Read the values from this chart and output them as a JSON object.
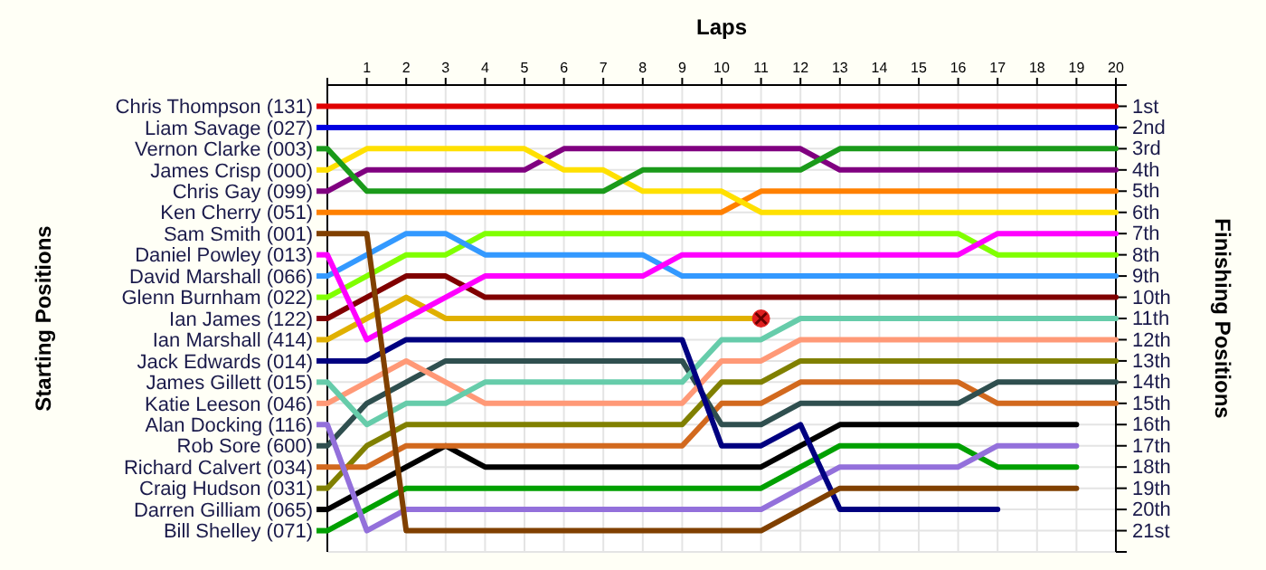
{
  "chart_data": {
    "type": "line",
    "xlabel": "Laps",
    "ylabel": "Finishing Positions",
    "annotations": [
      "Starting Positions"
    ],
    "grid": true,
    "legend": "left",
    "x": [
      0,
      1,
      2,
      3,
      4,
      5,
      6,
      7,
      8,
      9,
      10,
      11,
      12,
      13,
      14,
      15,
      16,
      17,
      18,
      19,
      20
    ],
    "xlim": [
      0,
      20
    ],
    "xticks": [
      {
        "value": 0,
        "label": null
      },
      1,
      2,
      3,
      4,
      5,
      6,
      7,
      8,
      9,
      10,
      11,
      12,
      13,
      14,
      15,
      16,
      17,
      18,
      19,
      20
    ],
    "ylim": [
      22,
      0
    ],
    "yticks": [
      {
        "value": 0,
        "label": null
      },
      {
        "value": 1,
        "label": "1st"
      },
      {
        "value": 2,
        "label": "2nd"
      },
      {
        "value": 3,
        "label": "3rd"
      },
      {
        "value": 4,
        "label": "4th"
      },
      {
        "value": 5,
        "label": "5th"
      },
      {
        "value": 6,
        "label": "6th"
      },
      {
        "value": 7,
        "label": "7th"
      },
      {
        "value": 8,
        "label": "8th"
      },
      {
        "value": 9,
        "label": "9th"
      },
      {
        "value": 10,
        "label": "10th"
      },
      {
        "value": 11,
        "label": "11th"
      },
      {
        "value": 12,
        "label": "12th"
      },
      {
        "value": 13,
        "label": "13th"
      },
      {
        "value": 14,
        "label": "14th"
      },
      {
        "value": 15,
        "label": "15th"
      },
      {
        "value": 16,
        "label": "16th"
      },
      {
        "value": 17,
        "label": "17th"
      },
      {
        "value": 18,
        "label": "18th"
      },
      {
        "value": 19,
        "label": "19th"
      },
      {
        "value": 20,
        "label": "20th"
      },
      {
        "value": 21,
        "label": "21st"
      },
      {
        "value": 22,
        "label": null
      }
    ],
    "series": [
      {
        "name": "Chris Thompson (131)",
        "color": "#e00000",
        "values": [
          1,
          1,
          1,
          1,
          1,
          1,
          1,
          1,
          1,
          1,
          1,
          1,
          1,
          1,
          1,
          1,
          1,
          1,
          1,
          1,
          1
        ]
      },
      {
        "name": "Liam Savage (027)",
        "color": "#0000e0",
        "values": [
          2,
          2,
          2,
          2,
          2,
          2,
          2,
          2,
          2,
          2,
          2,
          2,
          2,
          2,
          2,
          2,
          2,
          2,
          2,
          2,
          2
        ]
      },
      {
        "name": "Vernon Clarke (003)",
        "color": "#1a9a1a",
        "values": [
          3,
          5,
          5,
          5,
          5,
          5,
          5,
          5,
          4,
          4,
          4,
          4,
          4,
          3,
          3,
          3,
          3,
          3,
          3,
          3,
          3
        ]
      },
      {
        "name": "James Crisp (000)",
        "color": "#ffe000",
        "values": [
          4,
          3,
          3,
          3,
          3,
          3,
          4,
          4,
          5,
          5,
          5,
          6,
          6,
          6,
          6,
          6,
          6,
          6,
          6,
          6,
          6
        ]
      },
      {
        "name": "Chris Gay (099)",
        "color": "#800080",
        "values": [
          5,
          4,
          4,
          4,
          4,
          4,
          3,
          3,
          3,
          3,
          3,
          3,
          3,
          4,
          4,
          4,
          4,
          4,
          4,
          4,
          4
        ]
      },
      {
        "name": "Ken Cherry (051)",
        "color": "#ff8000",
        "values": [
          6,
          6,
          6,
          6,
          6,
          6,
          6,
          6,
          6,
          6,
          6,
          5,
          5,
          5,
          5,
          5,
          5,
          5,
          5,
          5,
          5
        ]
      },
      {
        "name": "Sam Smith (001)",
        "color": "#804000",
        "values": [
          7,
          7,
          21,
          21,
          21,
          21,
          21,
          21,
          21,
          21,
          21,
          21,
          20,
          19,
          19,
          19,
          19,
          19,
          19,
          19,
          null
        ]
      },
      {
        "name": "Daniel Powley (013)",
        "color": "#ff00ff",
        "values": [
          8,
          12,
          11,
          10,
          9,
          9,
          9,
          9,
          9,
          8,
          8,
          8,
          8,
          8,
          8,
          8,
          8,
          7,
          7,
          7,
          7
        ]
      },
      {
        "name": "David Marshall (066)",
        "color": "#3399ff",
        "values": [
          9,
          8,
          7,
          7,
          8,
          8,
          8,
          8,
          8,
          9,
          9,
          9,
          9,
          9,
          9,
          9,
          9,
          9,
          9,
          9,
          9
        ]
      },
      {
        "name": "Glenn Burnham (022)",
        "color": "#80ff00",
        "values": [
          10,
          9,
          8,
          8,
          7,
          7,
          7,
          7,
          7,
          7,
          7,
          7,
          7,
          7,
          7,
          7,
          7,
          8,
          8,
          8,
          8
        ]
      },
      {
        "name": "Ian James (122)",
        "color": "#800000",
        "values": [
          11,
          10,
          9,
          9,
          10,
          10,
          10,
          10,
          10,
          10,
          10,
          10,
          10,
          10,
          10,
          10,
          10,
          10,
          10,
          10,
          10
        ]
      },
      {
        "name": "Ian Marshall (414)",
        "color": "#e0b000",
        "values": [
          12,
          11,
          10,
          11,
          11,
          11,
          11,
          11,
          11,
          11,
          11,
          11,
          null,
          null,
          null,
          null,
          null,
          null,
          null,
          null,
          null
        ]
      },
      {
        "name": "Jack Edwards (014)",
        "color": "#000080",
        "values": [
          13,
          13,
          12,
          12,
          12,
          12,
          12,
          12,
          12,
          12,
          17,
          17,
          16,
          20,
          20,
          20,
          20,
          20,
          null,
          null,
          null
        ]
      },
      {
        "name": "James Gillett (015)",
        "color": "#66ccaa",
        "values": [
          14,
          16,
          15,
          15,
          14,
          14,
          14,
          14,
          14,
          14,
          12,
          12,
          11,
          11,
          11,
          11,
          11,
          11,
          11,
          11,
          11
        ]
      },
      {
        "name": "Katie Leeson (046)",
        "color": "#ff9977",
        "values": [
          15,
          14,
          13,
          14,
          15,
          15,
          15,
          15,
          15,
          15,
          13,
          13,
          12,
          12,
          12,
          12,
          12,
          12,
          12,
          12,
          12
        ]
      },
      {
        "name": "Alan Docking (116)",
        "color": "#9370db",
        "values": [
          16,
          21,
          20,
          20,
          20,
          20,
          20,
          20,
          20,
          20,
          20,
          20,
          19,
          18,
          18,
          18,
          18,
          17,
          17,
          17,
          null
        ]
      },
      {
        "name": "Rob Sore (600)",
        "color": "#2f4f4f",
        "values": [
          17,
          15,
          14,
          13,
          13,
          13,
          13,
          13,
          13,
          13,
          16,
          16,
          15,
          15,
          15,
          15,
          15,
          14,
          14,
          14,
          14
        ]
      },
      {
        "name": "Richard Calvert (034)",
        "color": "#d2691e",
        "values": [
          18,
          18,
          17,
          17,
          17,
          17,
          17,
          17,
          17,
          17,
          15,
          15,
          14,
          14,
          14,
          14,
          14,
          15,
          15,
          15,
          15
        ]
      },
      {
        "name": "Craig Hudson (031)",
        "color": "#808000",
        "values": [
          19,
          17,
          16,
          16,
          16,
          16,
          16,
          16,
          16,
          16,
          14,
          14,
          13,
          13,
          13,
          13,
          13,
          13,
          13,
          13,
          13
        ]
      },
      {
        "name": "Darren Gilliam (065)",
        "color": "#000000",
        "values": [
          20,
          19,
          18,
          17,
          18,
          18,
          18,
          18,
          18,
          18,
          18,
          18,
          17,
          16,
          16,
          16,
          16,
          16,
          16,
          16,
          null
        ]
      },
      {
        "name": "Bill Shelley (071)",
        "color": "#00a000",
        "values": [
          21,
          20,
          19,
          19,
          19,
          19,
          19,
          19,
          19,
          19,
          19,
          19,
          18,
          17,
          17,
          17,
          17,
          18,
          18,
          18,
          null
        ]
      }
    ]
  }
}
